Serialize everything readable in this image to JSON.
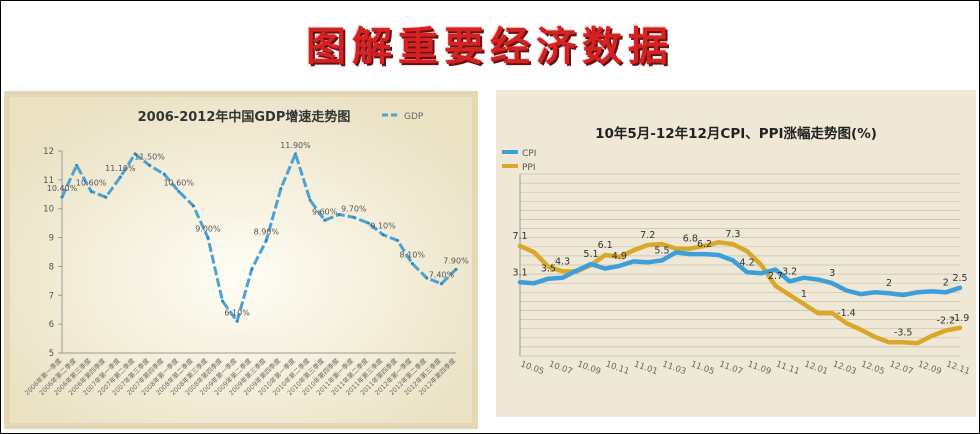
{
  "page": {
    "title": "图解重要经济数据",
    "colors": {
      "title_red": "#d42222",
      "gdp_line": "#4aa3d6",
      "cpi_line": "#3d9fd9",
      "ppi_line": "#d9a82b",
      "panel_bg": "#e3d7b5"
    }
  },
  "chart_data": [
    {
      "type": "line",
      "title": "2006-2012年中国GDP增速走势图",
      "legend": {
        "position": "top-right",
        "items": [
          "GDP"
        ]
      },
      "ylim": [
        5,
        12
      ],
      "y_ticks": [
        "5",
        "6",
        "7",
        "8",
        "9",
        "10",
        "11",
        "12"
      ],
      "grid": false,
      "categories": [
        "2006年第一季度",
        "2006年第二季度",
        "2006年第三季度",
        "2006年第四季度",
        "2007年第一季度",
        "2007年第二季度",
        "2007年第三季度",
        "2007年第四季度",
        "2008年第一季度",
        "2008年第二季度",
        "2008年第三季度",
        "2008年第四季度",
        "2009年第一季度",
        "2009年第二季度",
        "2009年第三季度",
        "2009年第四季度",
        "2010年第一季度",
        "2010年第二季度",
        "2010年第三季度",
        "2010年第四季度",
        "2011年第一季度",
        "2011年第二季度",
        "2011年第三季度",
        "2011年第四季度",
        "2012年第一季度",
        "2012年第二季度",
        "2012年第三季度",
        "2012年第四季度"
      ],
      "series": [
        {
          "name": "GDP",
          "values": [
            10.4,
            11.5,
            10.6,
            10.4,
            11.1,
            11.9,
            11.5,
            11.2,
            10.6,
            10.1,
            9.0,
            6.8,
            6.1,
            7.9,
            8.9,
            10.7,
            11.9,
            10.3,
            9.6,
            9.8,
            9.7,
            9.5,
            9.1,
            8.9,
            8.1,
            7.6,
            7.4,
            7.9
          ]
        }
      ],
      "data_labels": [
        {
          "index": 0,
          "text": "10.40%"
        },
        {
          "index": 2,
          "text": "10.60%"
        },
        {
          "index": 4,
          "text": "11.10%"
        },
        {
          "index": 6,
          "text": "11.50%"
        },
        {
          "index": 8,
          "text": "10.60%"
        },
        {
          "index": 10,
          "text": "9.00%"
        },
        {
          "index": 12,
          "text": "6.10%"
        },
        {
          "index": 14,
          "text": "8.90%"
        },
        {
          "index": 16,
          "text": "11.90%"
        },
        {
          "index": 18,
          "text": "9.60%"
        },
        {
          "index": 20,
          "text": "9.70%"
        },
        {
          "index": 22,
          "text": "9.10%"
        },
        {
          "index": 24,
          "text": "8.10%"
        },
        {
          "index": 26,
          "text": "7.40%"
        },
        {
          "index": 27,
          "text": "7.90%"
        }
      ]
    },
    {
      "type": "line",
      "title": "10年5月-12年12月CPI、PPI涨幅走势图(%)",
      "legend": {
        "position": "top-left",
        "items": [
          "CPI",
          "PPI"
        ]
      },
      "ylim": [
        -5,
        15
      ],
      "grid": true,
      "x_tick_labels": [
        "10.05",
        "10.07",
        "10.09",
        "10.11",
        "11.01",
        "11.03",
        "11.05",
        "11.07",
        "11.09",
        "11.11",
        "12.01",
        "12.03",
        "12.05",
        "12.07",
        "12.09",
        "12.11"
      ],
      "series": [
        {
          "name": "CPI",
          "values": [
            3.1,
            3.0,
            3.5,
            3.6,
            4.4,
            5.1,
            4.6,
            4.9,
            5.4,
            5.3,
            5.5,
            6.4,
            6.2,
            6.2,
            6.1,
            5.5,
            4.2,
            4.1,
            4.5,
            3.2,
            3.6,
            3.4,
            3.0,
            2.2,
            1.8,
            2.0,
            1.9,
            1.7,
            2.0,
            2.1,
            2.0,
            2.5
          ]
        },
        {
          "name": "PPI",
          "values": [
            7.1,
            6.4,
            4.8,
            4.3,
            4.3,
            5.0,
            6.1,
            5.9,
            6.6,
            7.2,
            7.3,
            6.8,
            6.8,
            7.1,
            7.5,
            7.3,
            6.5,
            5.0,
            2.7,
            1.7,
            0.7,
            -0.3,
            -0.3,
            -1.4,
            -2.1,
            -2.9,
            -3.5,
            -3.5,
            -3.6,
            -2.8,
            -2.2,
            -1.9
          ]
        }
      ],
      "data_labels": [
        {
          "series": "CPI",
          "index": 0,
          "text": "3.1"
        },
        {
          "series": "CPI",
          "index": 2,
          "text": "3.5"
        },
        {
          "series": "CPI",
          "index": 5,
          "text": "5.1"
        },
        {
          "series": "CPI",
          "index": 7,
          "text": "4.9"
        },
        {
          "series": "CPI",
          "index": 10,
          "text": "5.5"
        },
        {
          "series": "CPI",
          "index": 13,
          "text": "6.2"
        },
        {
          "series": "CPI",
          "index": 16,
          "text": "4.2"
        },
        {
          "series": "CPI",
          "index": 19,
          "text": "3.2"
        },
        {
          "series": "CPI",
          "index": 22,
          "text": "3"
        },
        {
          "series": "CPI",
          "index": 26,
          "text": "2"
        },
        {
          "series": "CPI",
          "index": 30,
          "text": "2"
        },
        {
          "series": "CPI",
          "index": 31,
          "text": "2.5"
        },
        {
          "series": "PPI",
          "index": 0,
          "text": "7.1"
        },
        {
          "series": "PPI",
          "index": 3,
          "text": "4.3"
        },
        {
          "series": "PPI",
          "index": 6,
          "text": "6.1"
        },
        {
          "series": "PPI",
          "index": 9,
          "text": "7.2"
        },
        {
          "series": "PPI",
          "index": 12,
          "text": "6.8"
        },
        {
          "series": "PPI",
          "index": 15,
          "text": "7.3"
        },
        {
          "series": "PPI",
          "index": 18,
          "text": "2.7"
        },
        {
          "series": "PPI",
          "index": 20,
          "text": "1"
        },
        {
          "series": "PPI",
          "index": 23,
          "text": "-1.4"
        },
        {
          "series": "PPI",
          "index": 27,
          "text": "-3.5"
        },
        {
          "series": "PPI",
          "index": 30,
          "text": "-2.2"
        },
        {
          "series": "PPI",
          "index": 31,
          "text": "-1.9"
        }
      ]
    }
  ]
}
